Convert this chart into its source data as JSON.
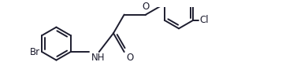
{
  "bg_color": "#ffffff",
  "line_color": "#1c1c2e",
  "line_width": 1.4,
  "font_size": 8.5,
  "figsize": [
    3.72,
    1.07
  ],
  "dpi": 100,
  "xlim": [
    0,
    10.5
  ],
  "ylim": [
    0,
    3.0
  ]
}
